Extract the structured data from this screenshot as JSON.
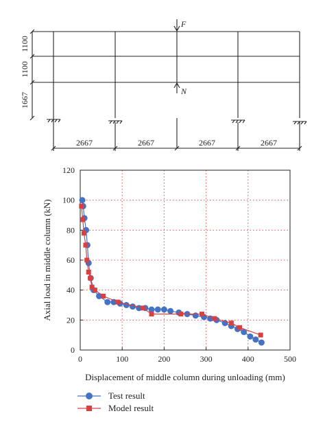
{
  "frame_diagram": {
    "column_labels": [
      "2667",
      "2667",
      "2667",
      "2667"
    ],
    "story_labels": [
      "1100",
      "1100",
      "1667"
    ],
    "load_top": "F",
    "load_mid": "N"
  },
  "chart_data": {
    "type": "scatter",
    "xlabel": "Displacement of middle column during unloading (mm)",
    "ylabel": "Axial load in middle column (kN)",
    "xlim": [
      0,
      500
    ],
    "ylim": [
      0,
      120
    ],
    "x_ticks": [
      "0",
      "100",
      "200",
      "300",
      "400",
      "500"
    ],
    "y_ticks": [
      "0",
      "20",
      "40",
      "60",
      "80",
      "100",
      "120"
    ],
    "grid": true,
    "legend_position": "bottom-left",
    "series": [
      {
        "name": "Test result",
        "color": "#4472C4",
        "marker": "circle",
        "line": true,
        "x": [
          5,
          7,
          10,
          14,
          17,
          20,
          25,
          32,
          45,
          65,
          80,
          95,
          110,
          125,
          140,
          155,
          170,
          185,
          200,
          215,
          235,
          255,
          275,
          295,
          310,
          325,
          345,
          360,
          375,
          390,
          405,
          418,
          432
        ],
        "y": [
          100,
          96,
          88,
          80,
          70,
          58,
          48,
          40,
          36,
          32,
          32,
          31,
          30,
          29,
          28,
          28,
          27,
          27,
          27,
          26,
          25,
          24,
          23,
          22,
          21,
          20,
          18,
          16,
          14,
          12,
          9,
          7,
          5
        ]
      },
      {
        "name": "Model result",
        "color": "#D94040",
        "marker": "square",
        "line": true,
        "x": [
          3,
          6,
          9,
          13,
          16,
          20,
          24,
          28,
          35,
          55,
          90,
          150,
          170,
          240,
          290,
          320,
          360,
          380,
          430
        ],
        "y": [
          96,
          87,
          78,
          70,
          60,
          52,
          48,
          42,
          40,
          36,
          32,
          28,
          24,
          24,
          24,
          21,
          18,
          15,
          10
        ]
      }
    ]
  }
}
